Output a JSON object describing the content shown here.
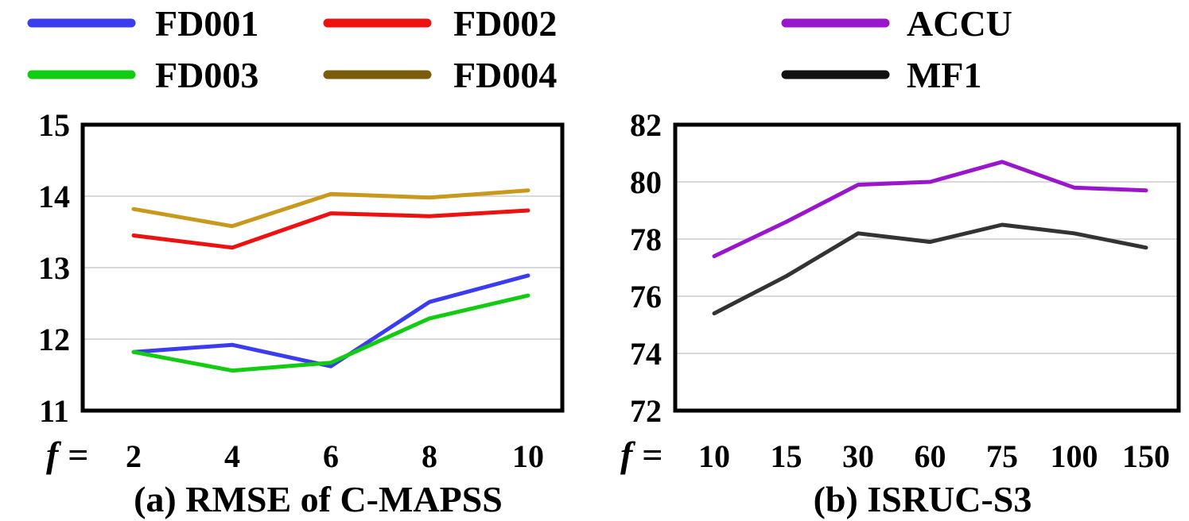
{
  "chart_data": [
    {
      "type": "line",
      "title": "(a) RMSE of C-MAPSS",
      "xlabel": "f =",
      "ylabel": "",
      "categories": [
        "2",
        "4",
        "6",
        "8",
        "10"
      ],
      "ylim": [
        11,
        15
      ],
      "yticks": [
        11,
        12,
        13,
        14,
        15
      ],
      "grid": true,
      "series": [
        {
          "name": "FD001",
          "color": "#3b3bf0",
          "values": [
            11.82,
            11.92,
            11.62,
            12.52,
            12.89
          ]
        },
        {
          "name": "FD002",
          "color": "#ee1111",
          "values": [
            13.45,
            13.28,
            13.76,
            13.72,
            13.8
          ]
        },
        {
          "name": "FD003",
          "color": "#11cc11",
          "values": [
            11.82,
            11.56,
            11.67,
            12.29,
            12.61
          ]
        },
        {
          "name": "FD004",
          "color": "#c8991c",
          "values": [
            13.82,
            13.58,
            14.03,
            13.98,
            14.08
          ]
        }
      ],
      "legend": [
        {
          "name": "FD001",
          "color": "#3b3bf0"
        },
        {
          "name": "FD002",
          "color": "#ee1111"
        },
        {
          "name": "FD003",
          "color": "#11cc11"
        },
        {
          "name": "FD004",
          "color": "#7a5c0a"
        }
      ]
    },
    {
      "type": "line",
      "title": "(b) ISRUC-S3",
      "xlabel": "f =",
      "ylabel": "",
      "categories": [
        "10",
        "15",
        "30",
        "60",
        "75",
        "100",
        "150"
      ],
      "ylim": [
        72,
        82
      ],
      "yticks": [
        72,
        74,
        76,
        78,
        80,
        82
      ],
      "grid": true,
      "series": [
        {
          "name": "ACCU",
          "color": "#9a16cc",
          "values": [
            77.4,
            78.6,
            79.9,
            80.0,
            80.7,
            79.8,
            79.7
          ]
        },
        {
          "name": "MF1",
          "color": "#333333",
          "values": [
            75.4,
            76.7,
            78.2,
            77.9,
            78.5,
            78.2,
            77.7
          ]
        }
      ],
      "legend": [
        {
          "name": "ACCU",
          "color": "#9a16cc"
        },
        {
          "name": "MF1",
          "color": "#111111"
        }
      ]
    }
  ]
}
